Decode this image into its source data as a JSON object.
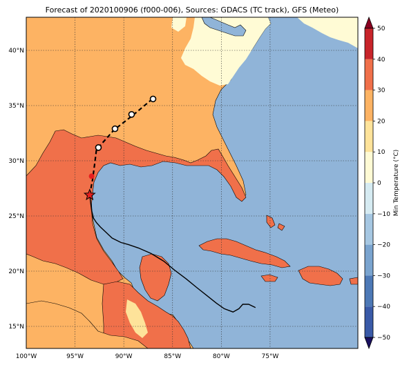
{
  "title": "Forecast of 2020100906 (f000-006), Sources: GDACS (TC track), GFS (Meteo)",
  "colors": {
    "ocean": "#90b4d8",
    "band_neg30_to_neg20": "#5b88c0",
    "band_0_10": "#fffbd5",
    "band_10_20": "#fee39a",
    "band_20_30": "#fdb363",
    "band_30_40": "#f0704a",
    "track_past": "#000000",
    "track_forecast": "#000000",
    "current_position": "#e51f1f",
    "forecast_marker_fill": "#ffffff"
  },
  "map": {
    "projection": "cylindrical",
    "lon_range": [
      -100,
      -66
    ],
    "lat_range": [
      13,
      43
    ],
    "lon_ticks": [
      {
        "value": -100,
        "label": "100°W"
      },
      {
        "value": -95,
        "label": "95°W"
      },
      {
        "value": -90,
        "label": "90°W"
      },
      {
        "value": -85,
        "label": "85°W"
      },
      {
        "value": -80,
        "label": "80°W"
      },
      {
        "value": -75,
        "label": "75°W"
      }
    ],
    "lat_ticks": [
      {
        "value": 15,
        "label": "15°N"
      },
      {
        "value": 20,
        "label": "20°N"
      },
      {
        "value": 25,
        "label": "25°N"
      },
      {
        "value": 30,
        "label": "30°N"
      },
      {
        "value": 35,
        "label": "35°N"
      },
      {
        "value": 40,
        "label": "40°N"
      }
    ],
    "gridlines": "dotted"
  },
  "colorbar": {
    "label": "Min Temperature (°C)",
    "ticks": [
      "50",
      "40",
      "30",
      "20",
      "10",
      "0",
      "−10",
      "−20",
      "−30",
      "−40",
      "−50"
    ],
    "range": [
      -50,
      50
    ],
    "step": 10,
    "band_colors": [
      "#2d2b8c",
      "#3a5aa8",
      "#4d79b6",
      "#7aa4cf",
      "#a6c7e2",
      "#d6ebf2",
      "#fffbd5",
      "#fee39a",
      "#fdb363",
      "#f0704a",
      "#c8242a",
      "#8b0020"
    ]
  },
  "track": {
    "past": [
      [
        -76.5,
        16.7
      ],
      [
        -77.2,
        17.0
      ],
      [
        -77.8,
        17.0
      ],
      [
        -78.2,
        16.6
      ],
      [
        -78.8,
        16.3
      ],
      [
        -79.7,
        16.6
      ],
      [
        -80.5,
        17.1
      ],
      [
        -81.5,
        17.8
      ],
      [
        -82.5,
        18.5
      ],
      [
        -83.6,
        19.3
      ],
      [
        -84.8,
        20.1
      ],
      [
        -85.9,
        20.9
      ],
      [
        -87.2,
        21.6
      ],
      [
        -88.5,
        22.1
      ],
      [
        -89.5,
        22.4
      ],
      [
        -90.3,
        22.6
      ],
      [
        -91.2,
        23.0
      ],
      [
        -91.8,
        23.5
      ],
      [
        -92.4,
        24.0
      ],
      [
        -92.8,
        24.4
      ],
      [
        -93.1,
        24.8
      ],
      [
        -93.3,
        25.5
      ],
      [
        -93.4,
        26.2
      ],
      [
        -93.5,
        26.9
      ]
    ],
    "current": [
      -93.5,
      26.9
    ],
    "forecast": [
      [
        -93.5,
        26.9
      ],
      [
        -93.2,
        28.3
      ],
      [
        -93.0,
        29.6
      ],
      [
        -92.8,
        31.0
      ],
      [
        -91.0,
        32.8
      ],
      [
        -89.1,
        34.1
      ],
      [
        -87.2,
        35.5
      ]
    ],
    "forecast_red_point": [
      -93.3,
      28.6
    ],
    "forecast_markers": [
      [
        -92.6,
        31.2
      ],
      [
        -90.9,
        32.9
      ],
      [
        -89.2,
        34.2
      ],
      [
        -87.0,
        35.6
      ]
    ]
  },
  "legend_icons": {
    "current": "red-star-icon",
    "forecast": "open-circle-marker-icon"
  }
}
